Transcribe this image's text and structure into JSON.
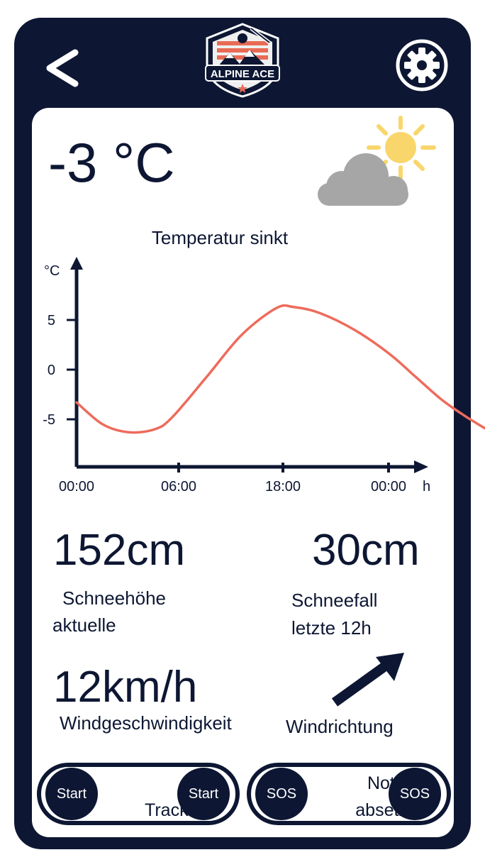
{
  "header": {
    "back_label": "<",
    "logo_text": "ALPINE ACE",
    "settings_icon": "gear-icon",
    "back_icon": "chevron-left-icon"
  },
  "weather": {
    "temperature": "-3 °C",
    "icon": "partly-sunny-icon"
  },
  "chart_data": {
    "type": "line",
    "title": "Temperatur sinkt",
    "ylabel": "°C",
    "xlabel": "h",
    "x_ticks": [
      "00:00",
      "06:00",
      "18:00",
      "00:00"
    ],
    "y_ticks": [
      "5",
      "0",
      "-5"
    ],
    "ylim": [
      -9.5,
      11
    ],
    "series": [
      {
        "color": "#ee6b5b",
        "points": [
          {
            "x": 0,
            "y": -3.3
          },
          {
            "x": 1.5,
            "y": -5.5
          },
          {
            "x": 3,
            "y": -6.3
          },
          {
            "x": 4.5,
            "y": -6.0
          },
          {
            "x": 5.5,
            "y": -4.8
          },
          {
            "x": 7.5,
            "y": -0.7
          },
          {
            "x": 9.5,
            "y": 3.5
          },
          {
            "x": 11.5,
            "y": 6.2
          },
          {
            "x": 12.5,
            "y": 6.3
          },
          {
            "x": 14,
            "y": 5.7
          },
          {
            "x": 16,
            "y": 4.0
          },
          {
            "x": 18,
            "y": 1.6
          },
          {
            "x": 19.5,
            "y": -0.7
          },
          {
            "x": 21,
            "y": -3.0
          },
          {
            "x": 22.3,
            "y": -4.6
          },
          {
            "x": 23.5,
            "y": -5.9
          }
        ]
      }
    ]
  },
  "stats": {
    "snow_depth": {
      "value": "152cm",
      "label_line1": "Schneehöhe",
      "label_line2": "aktuelle"
    },
    "snowfall": {
      "value": "30cm",
      "label_line1": "Schneefall",
      "label_line2": "letzte 12h"
    },
    "wind_speed": {
      "value": "12km/h",
      "label": "Windgeschwindigkeit"
    },
    "wind_direction": {
      "label": "Windrichtung",
      "icon": "arrow-up-right-icon"
    }
  },
  "actions": {
    "tracking": {
      "text": "Tracking",
      "start_left": "Start",
      "start_right": "Start"
    },
    "sos": {
      "text_line1": "Notruf",
      "text_line2": "absetzen",
      "sos_left": "SOS",
      "sos_right": "SOS"
    }
  },
  "colors": {
    "navy": "#0d1733",
    "curve": "#ee6b5b",
    "sun": "#f8d66b",
    "cloud": "#a6a6a6"
  }
}
